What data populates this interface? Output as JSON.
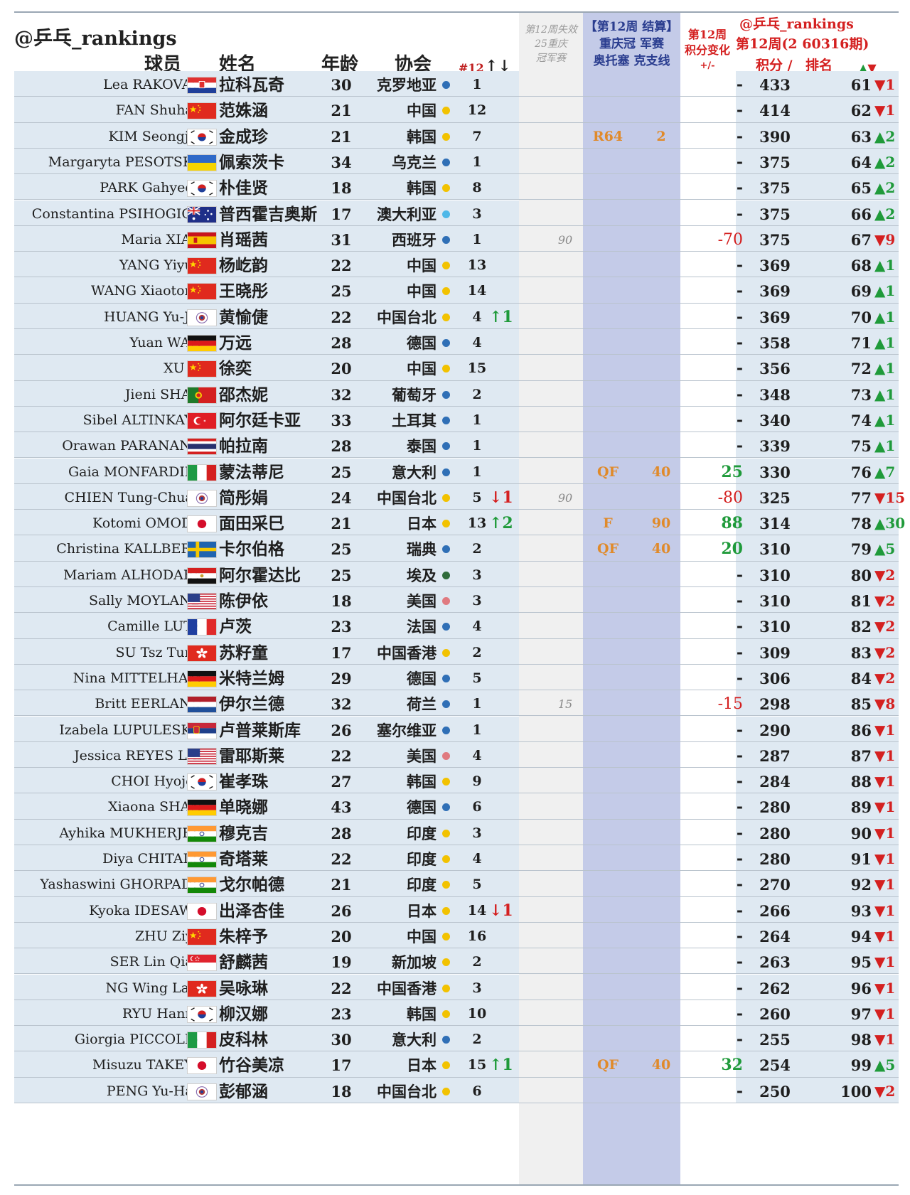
{
  "header": {
    "brand": "@乒乓_rankings",
    "col_player": "球员",
    "col_name": "姓名",
    "col_age": "年龄",
    "col_assoc": "协会",
    "col_count": "#12",
    "col_count_arrows": "↑↓",
    "lost_line1": "第12周失效",
    "lost_line2": "25重庆",
    "lost_line3": "冠军赛",
    "result_line1": "【第12周 结算】",
    "result_line2": "重庆冠 军赛",
    "result_line3": "奥托塞 克支线",
    "change_line1": "第12周",
    "change_line2": "积分变化",
    "change_line3": "+/-",
    "brand2": "@乒乓_rankings",
    "period": "第12周(2 60316期)",
    "col_points": "积分 /",
    "col_rank": "排名",
    "rank_arrows": "▲▼"
  },
  "colors": {
    "row_bg": "#dfe9f2",
    "lost_col_bg": "#f0f0f0",
    "result_col_bg": "#c4cbe8",
    "up": "#1f9a3a",
    "down": "#d42020",
    "result_text": "#e08a2a"
  },
  "rows": [
    {
      "en": "Lea RAKOVAC",
      "flag": "croatia",
      "cn": "拉科瓦奇",
      "age": "30",
      "assoc": "克罗地亚",
      "dot": "#2f6fb6",
      "count": "1",
      "mv": "",
      "lost": "",
      "res": "",
      "rpts": "",
      "chg": "-",
      "pts": "433",
      "rank": "61",
      "rm": "▼1"
    },
    {
      "en": "FAN Shuhan",
      "flag": "china",
      "cn": "范姝涵",
      "age": "21",
      "assoc": "中国",
      "dot": "#f2c200",
      "count": "12",
      "mv": "",
      "lost": "",
      "res": "",
      "rpts": "",
      "chg": "-",
      "pts": "414",
      "rank": "62",
      "rm": "▼1"
    },
    {
      "en": "KIM Seongjin",
      "flag": "korea",
      "cn": "金成珍",
      "age": "21",
      "assoc": "韩国",
      "dot": "#f2c200",
      "count": "7",
      "mv": "",
      "lost": "",
      "res": "R64",
      "rpts": "2",
      "chg": "-",
      "pts": "390",
      "rank": "63",
      "rm": "▲2"
    },
    {
      "en": "Margaryta PESOTSKA",
      "flag": "ukraine",
      "cn": "佩索茨卡",
      "age": "34",
      "assoc": "乌克兰",
      "dot": "#2f6fb6",
      "count": "1",
      "mv": "",
      "lost": "",
      "res": "",
      "rpts": "",
      "chg": "-",
      "pts": "375",
      "rank": "64",
      "rm": "▲2"
    },
    {
      "en": "PARK Gahyeon",
      "flag": "korea",
      "cn": "朴佳贤",
      "age": "18",
      "assoc": "韩国",
      "dot": "#f2c200",
      "count": "8",
      "mv": "",
      "lost": "",
      "res": "",
      "rpts": "",
      "chg": "-",
      "pts": "375",
      "rank": "65",
      "rm": "▲2"
    },
    {
      "en": "Constantina PSIHOGIOS",
      "flag": "australia",
      "cn": "普西霍吉奥斯",
      "age": "17",
      "assoc": "澳大利亚",
      "dot": "#4fb8e8",
      "count": "3",
      "mv": "",
      "lost": "",
      "res": "",
      "rpts": "",
      "chg": "-",
      "pts": "375",
      "rank": "66",
      "rm": "▲2"
    },
    {
      "en": "Maria XIAO",
      "flag": "spain",
      "cn": "肖瑶茜",
      "age": "31",
      "assoc": "西班牙",
      "dot": "#2f6fb6",
      "count": "1",
      "mv": "",
      "lost": "90",
      "res": "",
      "rpts": "",
      "chg": "-70",
      "pts": "375",
      "rank": "67",
      "rm": "▼9"
    },
    {
      "en": "YANG Yiyun",
      "flag": "china",
      "cn": "杨屹韵",
      "age": "22",
      "assoc": "中国",
      "dot": "#f2c200",
      "count": "13",
      "mv": "",
      "lost": "",
      "res": "",
      "rpts": "",
      "chg": "-",
      "pts": "369",
      "rank": "68",
      "rm": "▲1"
    },
    {
      "en": "WANG Xiaotong",
      "flag": "china",
      "cn": "王晓彤",
      "age": "25",
      "assoc": "中国",
      "dot": "#f2c200",
      "count": "14",
      "mv": "",
      "lost": "",
      "res": "",
      "rpts": "",
      "chg": "-",
      "pts": "369",
      "rank": "69",
      "rm": "▲1"
    },
    {
      "en": "HUANG Yu-Jie",
      "flag": "tpe",
      "cn": "黄愉倢",
      "age": "22",
      "assoc": "中国台北",
      "dot": "#f2c200",
      "count": "4",
      "mv": "↑1",
      "lost": "",
      "res": "",
      "rpts": "",
      "chg": "-",
      "pts": "369",
      "rank": "70",
      "rm": "▲1"
    },
    {
      "en": "Yuan WAN",
      "flag": "germany",
      "cn": "万远",
      "age": "28",
      "assoc": "德国",
      "dot": "#2f6fb6",
      "count": "4",
      "mv": "",
      "lost": "",
      "res": "",
      "rpts": "",
      "chg": "-",
      "pts": "358",
      "rank": "71",
      "rm": "▲1"
    },
    {
      "en": "XU Yi",
      "flag": "china",
      "cn": "徐奕",
      "age": "20",
      "assoc": "中国",
      "dot": "#f2c200",
      "count": "15",
      "mv": "",
      "lost": "",
      "res": "",
      "rpts": "",
      "chg": "-",
      "pts": "356",
      "rank": "72",
      "rm": "▲1"
    },
    {
      "en": "Jieni SHAO",
      "flag": "portugal",
      "cn": "邵杰妮",
      "age": "32",
      "assoc": "葡萄牙",
      "dot": "#2f6fb6",
      "count": "2",
      "mv": "",
      "lost": "",
      "res": "",
      "rpts": "",
      "chg": "-",
      "pts": "348",
      "rank": "73",
      "rm": "▲1"
    },
    {
      "en": "Sibel ALTINKAYA",
      "flag": "turkey",
      "cn": "阿尔廷卡亚",
      "age": "33",
      "assoc": "土耳其",
      "dot": "#2f6fb6",
      "count": "1",
      "mv": "",
      "lost": "",
      "res": "",
      "rpts": "",
      "chg": "-",
      "pts": "340",
      "rank": "74",
      "rm": "▲1"
    },
    {
      "en": "Orawan PARANANG",
      "flag": "thailand",
      "cn": "帕拉南",
      "age": "28",
      "assoc": "泰国",
      "dot": "#2f6fb6",
      "count": "1",
      "mv": "",
      "lost": "",
      "res": "",
      "rpts": "",
      "chg": "-",
      "pts": "339",
      "rank": "75",
      "rm": "▲1"
    },
    {
      "en": "Gaia MONFARDINI",
      "flag": "italy",
      "cn": "蒙法蒂尼",
      "age": "25",
      "assoc": "意大利",
      "dot": "#2f6fb6",
      "count": "1",
      "mv": "",
      "lost": "",
      "res": "QF",
      "rpts": "40",
      "chg": "25",
      "pts": "330",
      "rank": "76",
      "rm": "▲7"
    },
    {
      "en": "CHIEN Tung-Chuan",
      "flag": "tpe",
      "cn": "简彤娟",
      "age": "24",
      "assoc": "中国台北",
      "dot": "#f2c200",
      "count": "5",
      "mv": "↓1",
      "lost": "90",
      "res": "",
      "rpts": "",
      "chg": "-80",
      "pts": "325",
      "rank": "77",
      "rm": "▼15"
    },
    {
      "en": "Kotomi OMODA",
      "flag": "japan",
      "cn": "面田采巳",
      "age": "21",
      "assoc": "日本",
      "dot": "#f2c200",
      "count": "13",
      "mv": "↑2",
      "lost": "",
      "res": "F",
      "rpts": "90",
      "chg": "88",
      "pts": "314",
      "rank": "78",
      "rm": "▲30"
    },
    {
      "en": "Christina KALLBERG",
      "flag": "sweden",
      "cn": "卡尔伯格",
      "age": "25",
      "assoc": "瑞典",
      "dot": "#2f6fb6",
      "count": "2",
      "mv": "",
      "lost": "",
      "res": "QF",
      "rpts": "40",
      "chg": "20",
      "pts": "310",
      "rank": "79",
      "rm": "▲5"
    },
    {
      "en": "Mariam ALHODABY",
      "flag": "egypt",
      "cn": "阿尔霍达比",
      "age": "25",
      "assoc": "埃及",
      "dot": "#2e6b3a",
      "count": "3",
      "mv": "",
      "lost": "",
      "res": "",
      "rpts": "",
      "chg": "-",
      "pts": "310",
      "rank": "80",
      "rm": "▼2"
    },
    {
      "en": "Sally MOYLAND",
      "flag": "usa",
      "cn": "陈伊依",
      "age": "18",
      "assoc": "美国",
      "dot": "#e07a80",
      "count": "3",
      "mv": "",
      "lost": "",
      "res": "",
      "rpts": "",
      "chg": "-",
      "pts": "310",
      "rank": "81",
      "rm": "▼2"
    },
    {
      "en": "Camille LUTZ",
      "flag": "france",
      "cn": "卢茨",
      "age": "23",
      "assoc": "法国",
      "dot": "#2f6fb6",
      "count": "4",
      "mv": "",
      "lost": "",
      "res": "",
      "rpts": "",
      "chg": "-",
      "pts": "310",
      "rank": "82",
      "rm": "▼2"
    },
    {
      "en": "SU Tsz Tung",
      "flag": "hongkong",
      "cn": "苏籽童",
      "age": "17",
      "assoc": "中国香港",
      "dot": "#f2c200",
      "count": "2",
      "mv": "",
      "lost": "",
      "res": "",
      "rpts": "",
      "chg": "-",
      "pts": "309",
      "rank": "83",
      "rm": "▼2"
    },
    {
      "en": "Nina MITTELHAM",
      "flag": "germany",
      "cn": "米特兰姆",
      "age": "29",
      "assoc": "德国",
      "dot": "#2f6fb6",
      "count": "5",
      "mv": "",
      "lost": "",
      "res": "",
      "rpts": "",
      "chg": "-",
      "pts": "306",
      "rank": "84",
      "rm": "▼2"
    },
    {
      "en": "Britt EERLAND",
      "flag": "netherlands",
      "cn": "伊尔兰德",
      "age": "32",
      "assoc": "荷兰",
      "dot": "#2f6fb6",
      "count": "1",
      "mv": "",
      "lost": "15",
      "res": "",
      "rpts": "",
      "chg": "-15",
      "pts": "298",
      "rank": "85",
      "rm": "▼8"
    },
    {
      "en": "Izabela LUPULESKU",
      "flag": "serbia",
      "cn": "卢普莱斯库",
      "age": "26",
      "assoc": "塞尔维亚",
      "dot": "#2f6fb6",
      "count": "1",
      "mv": "",
      "lost": "",
      "res": "",
      "rpts": "",
      "chg": "-",
      "pts": "290",
      "rank": "86",
      "rm": "▼1"
    },
    {
      "en": "Jessica REYES LAI",
      "flag": "usa",
      "cn": "雷耶斯莱",
      "age": "22",
      "assoc": "美国",
      "dot": "#e07a80",
      "count": "4",
      "mv": "",
      "lost": "",
      "res": "",
      "rpts": "",
      "chg": "-",
      "pts": "287",
      "rank": "87",
      "rm": "▼1"
    },
    {
      "en": "CHOI Hyojoo",
      "flag": "korea",
      "cn": "崔孝珠",
      "age": "27",
      "assoc": "韩国",
      "dot": "#f2c200",
      "count": "9",
      "mv": "",
      "lost": "",
      "res": "",
      "rpts": "",
      "chg": "-",
      "pts": "284",
      "rank": "88",
      "rm": "▼1"
    },
    {
      "en": "Xiaona SHAN",
      "flag": "germany",
      "cn": "单晓娜",
      "age": "43",
      "assoc": "德国",
      "dot": "#2f6fb6",
      "count": "6",
      "mv": "",
      "lost": "",
      "res": "",
      "rpts": "",
      "chg": "-",
      "pts": "280",
      "rank": "89",
      "rm": "▼1"
    },
    {
      "en": "Ayhika MUKHERJEE",
      "flag": "india",
      "cn": "穆克吉",
      "age": "28",
      "assoc": "印度",
      "dot": "#f2c200",
      "count": "3",
      "mv": "",
      "lost": "",
      "res": "",
      "rpts": "",
      "chg": "-",
      "pts": "280",
      "rank": "90",
      "rm": "▼1"
    },
    {
      "en": "Diya CHITALE",
      "flag": "india",
      "cn": "奇塔莱",
      "age": "22",
      "assoc": "印度",
      "dot": "#f2c200",
      "count": "4",
      "mv": "",
      "lost": "",
      "res": "",
      "rpts": "",
      "chg": "-",
      "pts": "280",
      "rank": "91",
      "rm": "▼1"
    },
    {
      "en": "Yashaswini GHORPADE",
      "flag": "india",
      "cn": "戈尔帕德",
      "age": "21",
      "assoc": "印度",
      "dot": "#f2c200",
      "count": "5",
      "mv": "",
      "lost": "",
      "res": "",
      "rpts": "",
      "chg": "-",
      "pts": "270",
      "rank": "92",
      "rm": "▼1"
    },
    {
      "en": "Kyoka IDESAWA",
      "flag": "japan",
      "cn": "出泽杏佳",
      "age": "26",
      "assoc": "日本",
      "dot": "#f2c200",
      "count": "14",
      "mv": "↓1",
      "lost": "",
      "res": "",
      "rpts": "",
      "chg": "-",
      "pts": "266",
      "rank": "93",
      "rm": "▼1"
    },
    {
      "en": "ZHU Ziyu",
      "flag": "china",
      "cn": "朱梓予",
      "age": "20",
      "assoc": "中国",
      "dot": "#f2c200",
      "count": "16",
      "mv": "",
      "lost": "",
      "res": "",
      "rpts": "",
      "chg": "-",
      "pts": "264",
      "rank": "94",
      "rm": "▼1"
    },
    {
      "en": "SER Lin Qian",
      "flag": "singapore",
      "cn": "舒麟茜",
      "age": "19",
      "assoc": "新加坡",
      "dot": "#f2c200",
      "count": "2",
      "mv": "",
      "lost": "",
      "res": "",
      "rpts": "",
      "chg": "-",
      "pts": "263",
      "rank": "95",
      "rm": "▼1"
    },
    {
      "en": "NG Wing Lam",
      "flag": "hongkong",
      "cn": "吴咏琳",
      "age": "22",
      "assoc": "中国香港",
      "dot": "#f2c200",
      "count": "3",
      "mv": "",
      "lost": "",
      "res": "",
      "rpts": "",
      "chg": "-",
      "pts": "262",
      "rank": "96",
      "rm": "▼1"
    },
    {
      "en": "RYU Hanna",
      "flag": "korea",
      "cn": "柳汉娜",
      "age": "23",
      "assoc": "韩国",
      "dot": "#f2c200",
      "count": "10",
      "mv": "",
      "lost": "",
      "res": "",
      "rpts": "",
      "chg": "-",
      "pts": "260",
      "rank": "97",
      "rm": "▼1"
    },
    {
      "en": "Giorgia PICCOLIN",
      "flag": "italy",
      "cn": "皮科林",
      "age": "30",
      "assoc": "意大利",
      "dot": "#2f6fb6",
      "count": "2",
      "mv": "",
      "lost": "",
      "res": "",
      "rpts": "",
      "chg": "-",
      "pts": "255",
      "rank": "98",
      "rm": "▼1"
    },
    {
      "en": "Misuzu TAKEYA",
      "flag": "japan",
      "cn": "竹谷美凉",
      "age": "17",
      "assoc": "日本",
      "dot": "#f2c200",
      "count": "15",
      "mv": "↑1",
      "lost": "",
      "res": "QF",
      "rpts": "40",
      "chg": "32",
      "pts": "254",
      "rank": "99",
      "rm": "▲5"
    },
    {
      "en": "PENG Yu-Han",
      "flag": "tpe",
      "cn": "彭郁涵",
      "age": "18",
      "assoc": "中国台北",
      "dot": "#f2c200",
      "count": "6",
      "mv": "",
      "lost": "",
      "res": "",
      "rpts": "",
      "chg": "-",
      "pts": "250",
      "rank": "100",
      "rm": "▼2"
    }
  ]
}
